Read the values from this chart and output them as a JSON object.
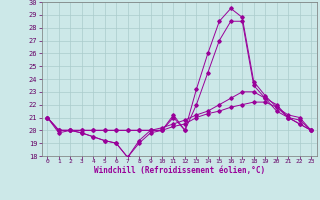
{
  "xlabel": "Windchill (Refroidissement éolien,°C)",
  "xlim": [
    -0.5,
    23.5
  ],
  "ylim": [
    18,
    30
  ],
  "yticks": [
    18,
    19,
    20,
    21,
    22,
    23,
    24,
    25,
    26,
    27,
    28,
    29,
    30
  ],
  "xtick_labels": [
    "0",
    "1",
    "2",
    "3",
    "4",
    "5",
    "6",
    "7",
    "8",
    "9",
    "10",
    "11",
    "12",
    "13",
    "14",
    "15",
    "16",
    "17",
    "18",
    "19",
    "20",
    "21",
    "22",
    "23"
  ],
  "background_color": "#cce8e8",
  "line_color": "#990099",
  "grid_color": "#aacccc",
  "series": [
    [
      21.0,
      19.8,
      20.0,
      19.8,
      19.5,
      19.2,
      19.0,
      17.9,
      19.0,
      19.8,
      20.0,
      21.2,
      20.0,
      23.2,
      26.0,
      28.5,
      29.5,
      28.8,
      23.8,
      22.7,
      21.8,
      21.2,
      21.0,
      20.0
    ],
    [
      21.0,
      20.0,
      20.0,
      19.8,
      19.5,
      19.2,
      19.0,
      17.9,
      19.2,
      20.0,
      20.0,
      21.0,
      20.0,
      22.0,
      24.5,
      27.0,
      28.5,
      28.5,
      23.5,
      22.5,
      21.5,
      21.0,
      20.8,
      20.0
    ],
    [
      21.0,
      20.0,
      20.0,
      20.0,
      20.0,
      20.0,
      20.0,
      20.0,
      20.0,
      20.0,
      20.2,
      20.5,
      20.8,
      21.2,
      21.5,
      22.0,
      22.5,
      23.0,
      23.0,
      22.5,
      22.0,
      21.0,
      20.5,
      20.0
    ],
    [
      21.0,
      20.0,
      20.0,
      20.0,
      20.0,
      20.0,
      20.0,
      20.0,
      20.0,
      20.0,
      20.0,
      20.3,
      20.5,
      21.0,
      21.3,
      21.5,
      21.8,
      22.0,
      22.2,
      22.2,
      21.8,
      21.0,
      20.5,
      20.0
    ]
  ]
}
